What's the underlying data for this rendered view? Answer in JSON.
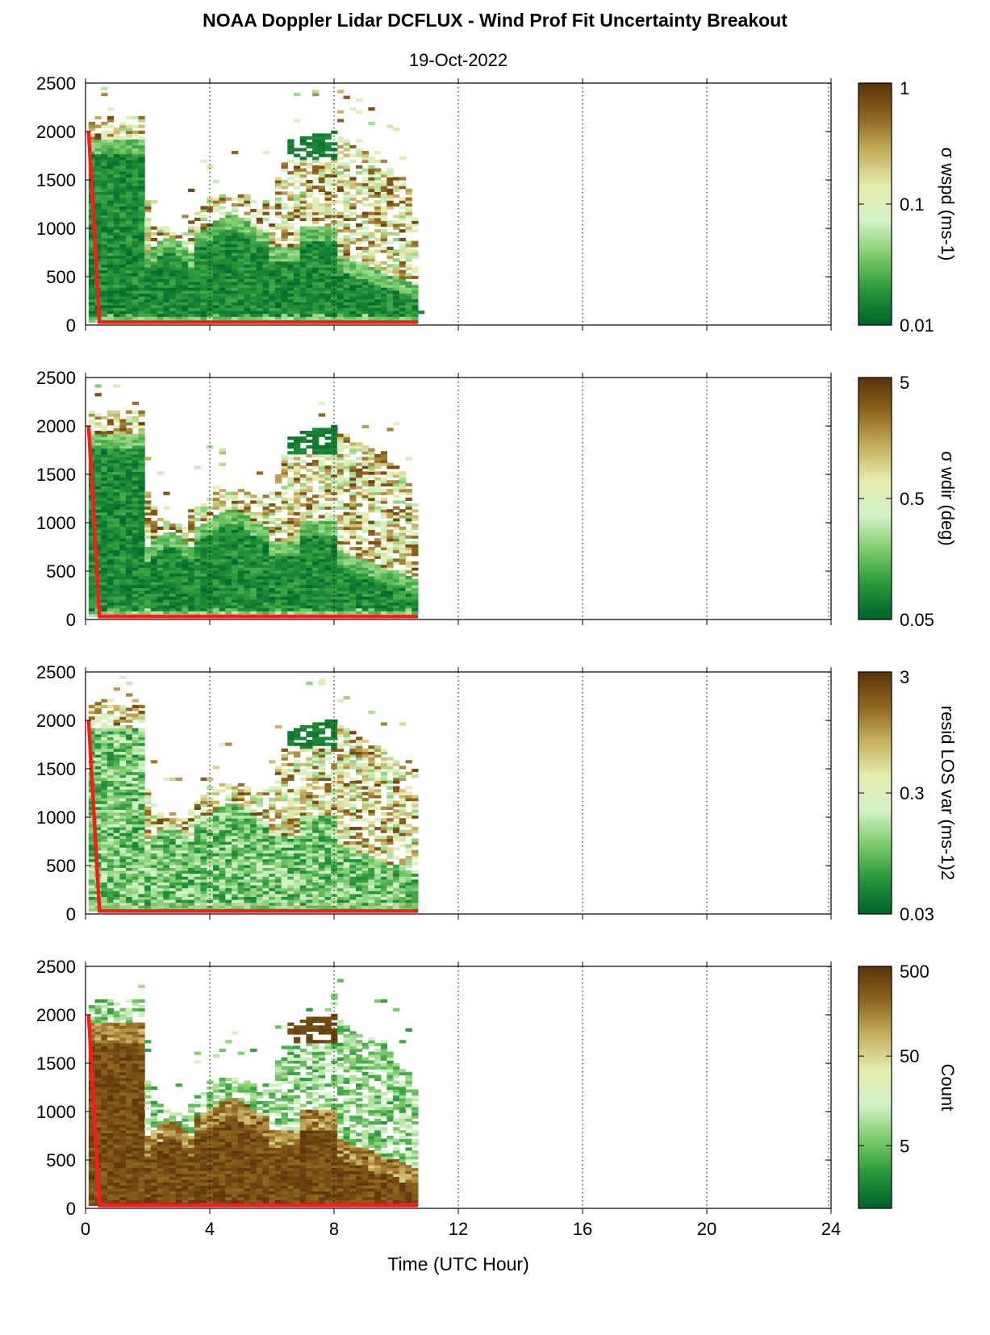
{
  "title": "NOAA Doppler Lidar DCFLUX - Wind Prof Fit Uncertainty Breakout",
  "subtitle": "19-Oct-2022",
  "xlabel": "Time (UTC Hour)",
  "colors": {
    "profile_line": "#ff1a1a",
    "cmap": [
      "#00622a",
      "#27963a",
      "#7ccb6a",
      "#d4f2c8",
      "#e6edb0",
      "#c7b060",
      "#8f661f",
      "#5a3208"
    ]
  },
  "chart_data": [
    {
      "type": "heatmap",
      "ylabel": "",
      "colorbar_label": "σ wspd (ms-1)",
      "colorbar_ticks": [
        "1",
        "0.1",
        "0.01"
      ],
      "colorbar_scale": "log",
      "clim": [
        0.01,
        1
      ],
      "x": {
        "range": [
          0,
          24
        ],
        "ticks": [
          0,
          4,
          8,
          12,
          16,
          20,
          24
        ],
        "grid": "dotted"
      },
      "y": {
        "range": [
          0,
          2500
        ],
        "ticks": [
          0,
          500,
          1000,
          1500,
          2000,
          2500
        ]
      },
      "data_extent_hours": [
        0.1,
        10.7
      ],
      "profile_line": [
        [
          0.1,
          2000
        ],
        [
          0.45,
          30
        ],
        [
          10.7,
          30
        ]
      ]
    },
    {
      "type": "heatmap",
      "ylabel": "",
      "colorbar_label": "σ wdir (deg)",
      "colorbar_ticks": [
        "5",
        "0.5",
        "0.05"
      ],
      "colorbar_scale": "log",
      "clim": [
        0.05,
        5
      ],
      "x": {
        "range": [
          0,
          24
        ],
        "ticks": [
          0,
          4,
          8,
          12,
          16,
          20,
          24
        ],
        "grid": "dotted"
      },
      "y": {
        "range": [
          0,
          2500
        ],
        "ticks": [
          0,
          500,
          1000,
          1500,
          2000,
          2500
        ]
      },
      "data_extent_hours": [
        0.1,
        10.7
      ],
      "profile_line": [
        [
          0.1,
          2000
        ],
        [
          0.45,
          30
        ],
        [
          10.7,
          30
        ]
      ]
    },
    {
      "type": "heatmap",
      "ylabel": "",
      "colorbar_label": "resid LOS var (ms-1)2",
      "colorbar_ticks": [
        "3",
        "0.3",
        "0.03"
      ],
      "colorbar_scale": "log",
      "clim": [
        0.03,
        3
      ],
      "x": {
        "range": [
          0,
          24
        ],
        "ticks": [
          0,
          4,
          8,
          12,
          16,
          20,
          24
        ],
        "grid": "dotted"
      },
      "y": {
        "range": [
          0,
          2500
        ],
        "ticks": [
          0,
          500,
          1000,
          1500,
          2000,
          2500
        ]
      },
      "data_extent_hours": [
        0.1,
        10.7
      ],
      "profile_line": [
        [
          0.1,
          2000
        ],
        [
          0.45,
          30
        ],
        [
          10.7,
          30
        ]
      ]
    },
    {
      "type": "heatmap",
      "ylabel": "",
      "colorbar_label": "Count",
      "colorbar_ticks": [
        "500",
        "50",
        "5"
      ],
      "colorbar_scale": "log",
      "clim": [
        1,
        500
      ],
      "x": {
        "range": [
          0,
          24
        ],
        "ticks": [
          0,
          4,
          8,
          12,
          16,
          20,
          24
        ],
        "grid": "dotted"
      },
      "y": {
        "range": [
          0,
          2500
        ],
        "ticks": [
          0,
          500,
          1000,
          1500,
          2000,
          2500
        ]
      },
      "data_extent_hours": [
        0.1,
        10.7
      ],
      "profile_line": [
        [
          0.1,
          2000
        ],
        [
          0.45,
          30
        ],
        [
          10.7,
          30
        ]
      ]
    }
  ]
}
